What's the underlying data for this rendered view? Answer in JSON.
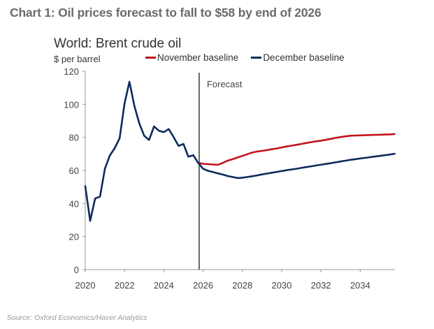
{
  "headline": "Chart 1: Oil prices forecast to fall to $58 by end of 2026",
  "source": {
    "prefix": "Source:",
    "text": "Oxford Economics/Haver Analytics"
  },
  "chart_data": {
    "type": "line",
    "title": "World: Brent crude oil",
    "ylabel": "$ per barrel",
    "xlabel": "",
    "xlim": [
      2020,
      2035.75
    ],
    "ylim": [
      0,
      120
    ],
    "x_ticks": [
      2020,
      2022,
      2024,
      2026,
      2028,
      2030,
      2032,
      2034
    ],
    "y_ticks": [
      0,
      20,
      40,
      60,
      80,
      100,
      120
    ],
    "grid": false,
    "legend_position": "top",
    "annotations": [
      {
        "type": "vertical-line",
        "x": 2025.8,
        "label": "Forecast"
      }
    ],
    "colors": {
      "november": "#c0141c",
      "december": "#0d2a5c",
      "axis": "#999999",
      "forecast_line": "#444444"
    },
    "series": [
      {
        "name": "November baseline",
        "key": "november",
        "x": [
          2025.75,
          2026.0,
          2026.25,
          2026.5,
          2026.75,
          2027.0,
          2027.25,
          2027.5,
          2027.75,
          2028.0,
          2028.25,
          2028.5,
          2028.75,
          2029.0,
          2029.25,
          2029.5,
          2029.75,
          2030.0,
          2030.25,
          2030.5,
          2030.75,
          2031.0,
          2031.25,
          2031.5,
          2031.75,
          2032.0,
          2032.25,
          2032.5,
          2032.75,
          2033.0,
          2033.25,
          2033.5,
          2033.75,
          2034.0,
          2034.25,
          2034.5,
          2034.75,
          2035.0,
          2035.25,
          2035.5,
          2035.75
        ],
        "values": [
          64.5,
          64.0,
          63.8,
          63.6,
          63.4,
          64.5,
          65.9,
          66.8,
          67.8,
          68.8,
          69.8,
          70.8,
          71.4,
          71.8,
          72.3,
          72.8,
          73.3,
          73.9,
          74.5,
          75.0,
          75.5,
          76.0,
          76.6,
          77.1,
          77.6,
          78.0,
          78.5,
          79.1,
          79.7,
          80.2,
          80.6,
          81.0,
          81.1,
          81.2,
          81.3,
          81.4,
          81.5,
          81.6,
          81.7,
          81.8,
          82.0
        ]
      },
      {
        "name": "December baseline",
        "key": "december",
        "x": [
          2020.0,
          2020.25,
          2020.5,
          2020.75,
          2021.0,
          2021.25,
          2021.5,
          2021.75,
          2022.0,
          2022.25,
          2022.5,
          2022.75,
          2023.0,
          2023.25,
          2023.5,
          2023.75,
          2024.0,
          2024.25,
          2024.5,
          2024.75,
          2025.0,
          2025.25,
          2025.5,
          2025.75,
          2026.0,
          2026.25,
          2026.5,
          2026.75,
          2027.0,
          2027.25,
          2027.5,
          2027.75,
          2028.0,
          2028.25,
          2028.5,
          2028.75,
          2029.0,
          2029.25,
          2029.5,
          2029.75,
          2030.0,
          2030.25,
          2030.5,
          2030.75,
          2031.0,
          2031.25,
          2031.5,
          2031.75,
          2032.0,
          2032.25,
          2032.5,
          2032.75,
          2033.0,
          2033.25,
          2033.5,
          2033.75,
          2034.0,
          2034.25,
          2034.5,
          2034.75,
          2035.0,
          2035.25,
          2035.5,
          2035.75
        ],
        "values": [
          50.5,
          29.5,
          43.0,
          44.2,
          61.0,
          69.0,
          73.5,
          79.5,
          100.5,
          113.6,
          99.0,
          88.5,
          81.0,
          78.4,
          86.6,
          84.0,
          83.2,
          85.0,
          80.2,
          74.8,
          76.0,
          68.3,
          69.2,
          64.5,
          61.0,
          59.8,
          59.0,
          58.2,
          57.5,
          56.6,
          56.0,
          55.4,
          55.6,
          56.0,
          56.5,
          57.0,
          57.6,
          58.1,
          58.6,
          59.1,
          59.6,
          60.1,
          60.6,
          61.0,
          61.5,
          62.0,
          62.5,
          63.0,
          63.4,
          63.9,
          64.4,
          64.9,
          65.4,
          65.9,
          66.4,
          66.8,
          67.2,
          67.6,
          68.0,
          68.4,
          68.8,
          69.2,
          69.6,
          70.1
        ]
      }
    ]
  }
}
